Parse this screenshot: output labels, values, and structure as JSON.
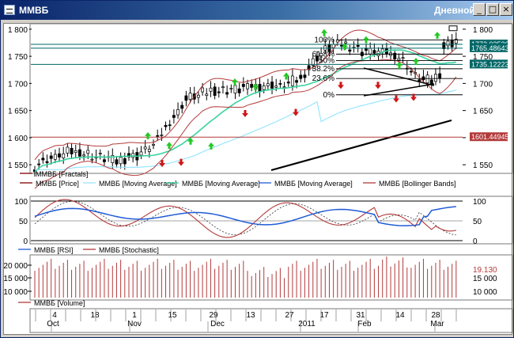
{
  "window": {
    "title": "ММВБ",
    "mode": "Дневной",
    "minimize": "_",
    "maximize": "□",
    "close": "×"
  },
  "chart_data": [
    {
      "type": "candlestick",
      "ylim": [
        1540,
        1810
      ],
      "yticks": [
        "1 800",
        "1 750",
        "1 700",
        "1 650",
        "1 600",
        "1 550"
      ],
      "right_yticks": [
        "1 800",
        "1 750",
        "1 700",
        "1 650",
        "1 600",
        "1 550"
      ],
      "value_labels": [
        "1772.03526",
        "1765.48643",
        "1735.12223",
        "1601.44945"
      ],
      "fibonacci_labels": [
        "100%",
        "61.8%",
        "50%",
        "38.2%",
        "23.6%",
        "0%"
      ],
      "legend": [
        {
          "label": "ММВБ [Fractals]",
          "color": "#800000"
        },
        {
          "label": "ММВБ [Price]",
          "color": "#800000"
        },
        {
          "label": "ММВБ [Moving Average]",
          "color": "#99e6ff"
        },
        {
          "label": "ММВБ [Moving Average]",
          "color": "#38d39f"
        },
        {
          "label": "ММВБ [Moving Average]",
          "color": "#1f5bd6"
        },
        {
          "label": "ММВБ [Bollinger Bands]",
          "color": "#b33a3a"
        }
      ]
    },
    {
      "type": "line",
      "ylim": [
        0,
        100
      ],
      "yticks": [
        "100",
        "50",
        "0"
      ],
      "right_yticks": [
        "100",
        "50",
        "0"
      ],
      "legend": [
        {
          "label": "ММВБ [RSI]",
          "color": "#1f5bd6"
        },
        {
          "label": "ММВБ [Stochastic]",
          "color": "#b33a3a"
        }
      ]
    },
    {
      "type": "bar",
      "ylim": [
        0,
        23000
      ],
      "yticks": [
        "20 000",
        "15 000",
        "10 000"
      ],
      "right_yticks": [
        "15 000",
        "10 000"
      ],
      "value_label": "19.130",
      "legend": [
        {
          "label": "ММВБ [Volume]",
          "color": "#b33a3a"
        }
      ]
    }
  ],
  "axis_labels": {
    "days": [
      "4",
      "18",
      "1",
      "15",
      "29",
      "13",
      "27",
      "17",
      "31",
      "14",
      "28"
    ],
    "months": [
      "Oct",
      "Nov",
      "Dec",
      "2011",
      "Feb",
      "Mar"
    ]
  }
}
